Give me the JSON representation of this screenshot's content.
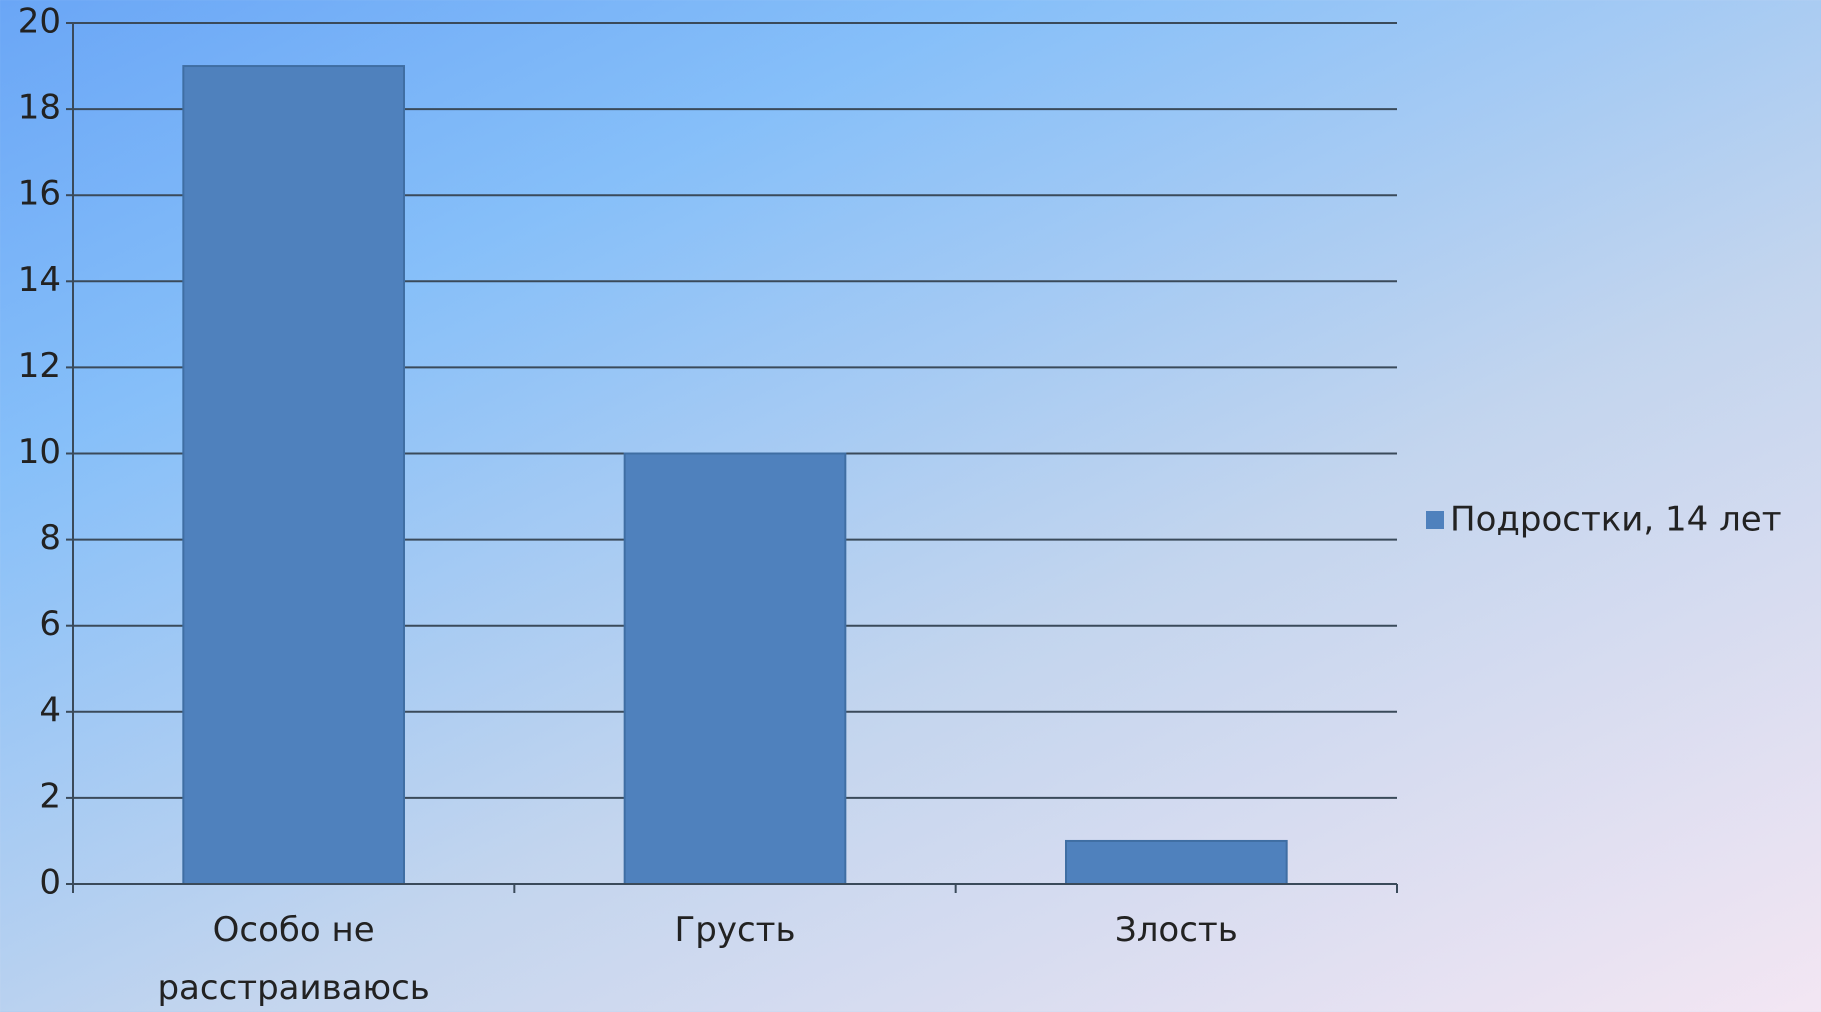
{
  "chart_data": {
    "type": "bar",
    "categories": [
      "Особо не расстраиваюсь",
      "Грусть",
      "Злость"
    ],
    "series": [
      {
        "name": "Подростки, 14 лет",
        "color": "#4f81bd",
        "values": [
          19,
          10,
          1
        ]
      }
    ],
    "ylim": [
      0,
      20
    ],
    "yticks": [
      0,
      2,
      4,
      6,
      8,
      10,
      12,
      14,
      16,
      18,
      20
    ],
    "grid": true,
    "legend": "right"
  }
}
